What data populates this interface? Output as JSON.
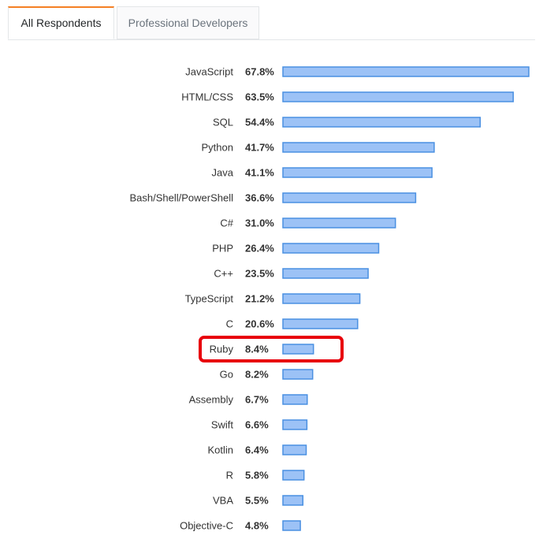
{
  "tabs": [
    {
      "label": "All Respondents",
      "active": true
    },
    {
      "label": "Professional Developers",
      "active": false
    }
  ],
  "colors": {
    "bar_fill": "#9cc2f6",
    "bar_stroke": "#4a90e2",
    "highlight": "#e8000b",
    "active_tab_accent": "#f48024"
  },
  "chart_data": {
    "type": "bar",
    "orientation": "horizontal",
    "value_format": "percent",
    "categories": [
      "JavaScript",
      "HTML/CSS",
      "SQL",
      "Python",
      "Java",
      "Bash/Shell/PowerShell",
      "C#",
      "PHP",
      "C++",
      "TypeScript",
      "C",
      "Ruby",
      "Go",
      "Assembly",
      "Swift",
      "Kotlin",
      "R",
      "VBA",
      "Objective-C"
    ],
    "values": [
      67.8,
      63.5,
      54.4,
      41.7,
      41.1,
      36.6,
      31.0,
      26.4,
      23.5,
      21.2,
      20.6,
      8.4,
      8.2,
      6.7,
      6.6,
      6.4,
      5.8,
      5.5,
      4.8
    ],
    "value_labels": [
      "67.8%",
      "63.5%",
      "54.4%",
      "41.7%",
      "41.1%",
      "36.6%",
      "31.0%",
      "26.4%",
      "23.5%",
      "21.2%",
      "20.6%",
      "8.4%",
      "8.2%",
      "6.7%",
      "6.6%",
      "6.4%",
      "5.8%",
      "5.5%",
      "4.8%"
    ],
    "highlighted": [
      "Ruby"
    ],
    "xlim": [
      0,
      67.8
    ],
    "grid": false,
    "legend": "none",
    "title": "",
    "xlabel": "",
    "ylabel": ""
  }
}
